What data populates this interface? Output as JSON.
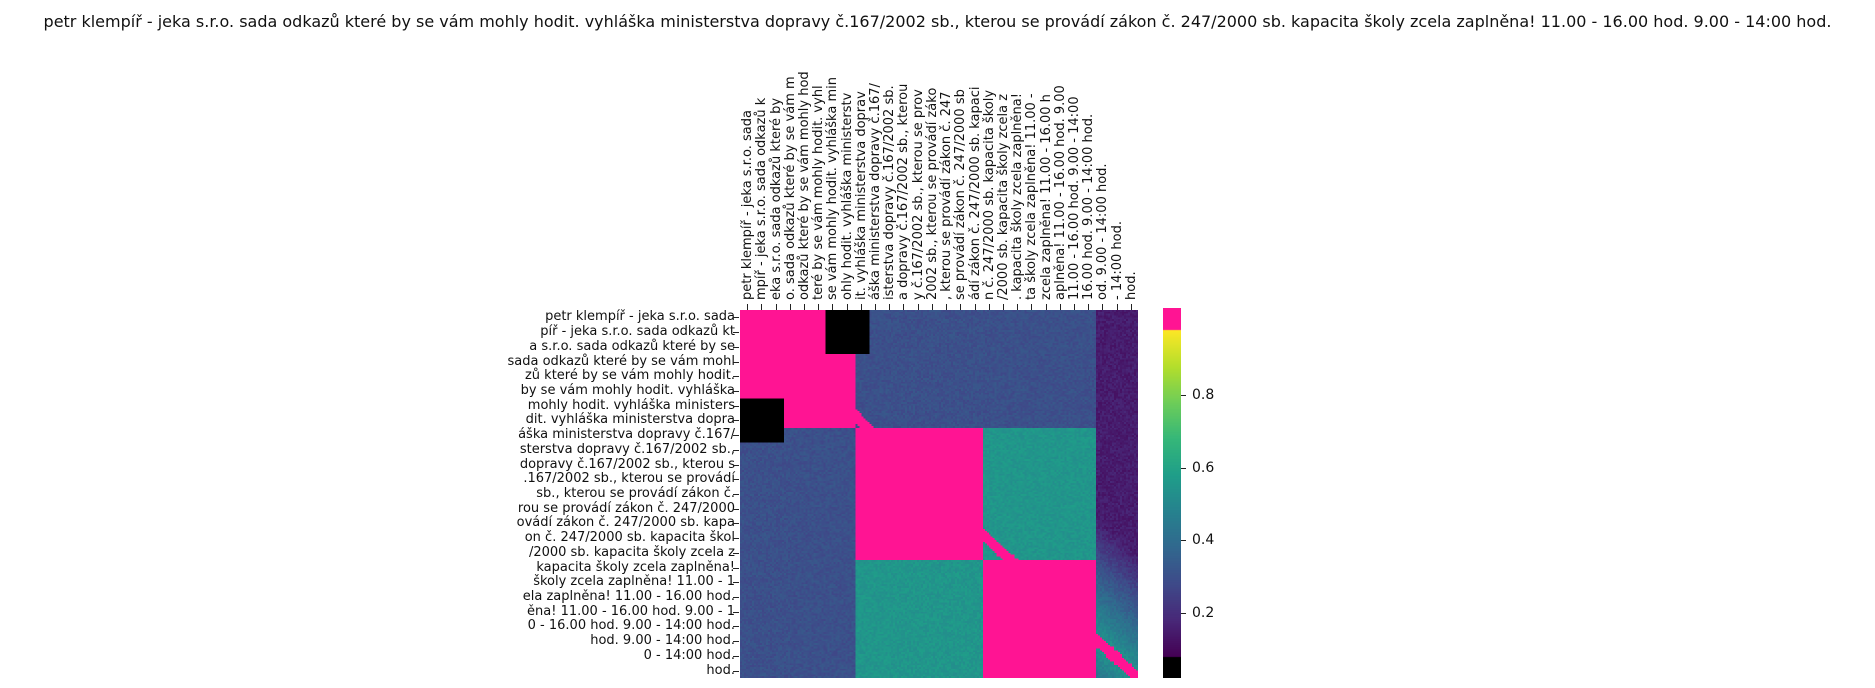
{
  "chart_data": {
    "type": "heatmap",
    "title": "petr klempíř - jeka s.r.o. sada odkazů které by se vám mohly hodit. vyhláška ministerstva dopravy č.167/2002 sb., kterou se provádí zákon č. 247/2000 sb. kapacita školy zcela zaplněna! 11.00 - 16.00 hod. 9.00 - 14:00 hod.",
    "y_tick_labels": [
      "petr klempíř - jeka s.r.o. sada",
      "píř - jeka s.r.o. sada odkazů kt",
      "a s.r.o. sada odkazů které by se",
      "sada odkazů které by se vám mohl",
      "zů které by se vám mohly hodit.",
      "by se vám mohly hodit. vyhláška",
      "mohly hodit. vyhláška ministers",
      "dit. vyhláška ministerstva dopra",
      "áška ministerstva dopravy č.167/",
      "sterstva dopravy č.167/2002 sb.,",
      "dopravy č.167/2002 sb., kterou s",
      ".167/2002 sb., kterou se provádí",
      "sb., kterou se provádí zákon č.",
      "rou se provádí zákon č. 247/2000",
      "ovádí zákon č. 247/2000 sb. kapa",
      "on č. 247/2000 sb. kapacita škol",
      "/2000 sb. kapacita školy zcela z",
      "kapacita školy zcela zaplněna!",
      "školy zcela zaplněna! 11.00 - 1",
      "ela zaplněna! 11.00 - 16.00 hod.",
      "ěna! 11.00 - 16.00 hod. 9.00 - 1",
      "0 - 16.00 hod. 9.00 - 14:00 hod.",
      "hod. 9.00 - 14:00 hod.",
      "0 - 14:00 hod.",
      "hod."
    ],
    "x_tick_labels": [
      "petr klempíř - jeka s.r.o. sada",
      "mpíř - jeka s.r.o. sada odkazů k",
      "eka s.r.o. sada odkazů které by",
      "o. sada odkazů které by se vám m",
      "odkazů které by se vám mohly hod",
      "teré by se vám mohly hodit. vyhl",
      "se vám mohly hodit. vyhláška min",
      "ohly hodit. vyhláška ministerstv",
      "it. vyhláška ministerstva doprav",
      "áška ministerstva dopravy č.167/",
      "isterstva dopravy č.167/2002 sb.",
      "a dopravy č.167/2002 sb., kterou",
      "y č.167/2002 sb., kterou se prov",
      "2002 sb., kterou se provádí záko",
      ", kterou se provádí zákon č. 247",
      " se provádí zákon č. 247/2000 sb",
      "ádí zákon č. 247/2000 sb. kapaci",
      "n č. 247/2000 sb. kapacita školy",
      "/2000 sb. kapacita školy zcela z",
      ". kapacita školy zcela zaplněna!",
      "ta školy zcela zaplněna! 11.00 -",
      " zcela zaplněna! 11.00 - 16.00 h",
      "aplněna! 11.00 - 16.00 hod. 9.00",
      " 11.00 - 16.00 hod. 9.00 - 14:00",
      "16.00 hod. 9.00 - 14:00 hod.",
      "od. 9.00 - 14:00 hod.",
      " - 14:00 hod.",
      "hod."
    ],
    "colorbar": {
      "ticks": [
        0.2,
        0.4,
        0.6,
        0.8
      ],
      "tick_labels": [
        "0.2",
        "0.4",
        "0.6",
        "0.8"
      ],
      "range": [
        0.08,
        0.98
      ],
      "colormap": "viridis",
      "over_color": "#ff1493",
      "under_color": "#000000"
    },
    "blocks": [
      {
        "rows": [
          0,
          7
        ],
        "cols": [
          0,
          7
        ],
        "value": 0.98
      },
      {
        "rows": [
          8,
          16
        ],
        "cols": [
          8,
          16
        ],
        "value": 0.98
      },
      {
        "rows": [
          17,
          24
        ],
        "cols": [
          17,
          24
        ],
        "value": 0.98
      },
      {
        "rows": [
          8,
          16
        ],
        "cols": [
          17,
          24
        ],
        "value": 0.55
      },
      {
        "rows": [
          0,
          7
        ],
        "cols": [
          8,
          24
        ],
        "value": 0.3
      },
      {
        "rows": [
          6,
          8
        ],
        "cols": [
          0,
          2
        ],
        "value": 0.05
      }
    ]
  }
}
